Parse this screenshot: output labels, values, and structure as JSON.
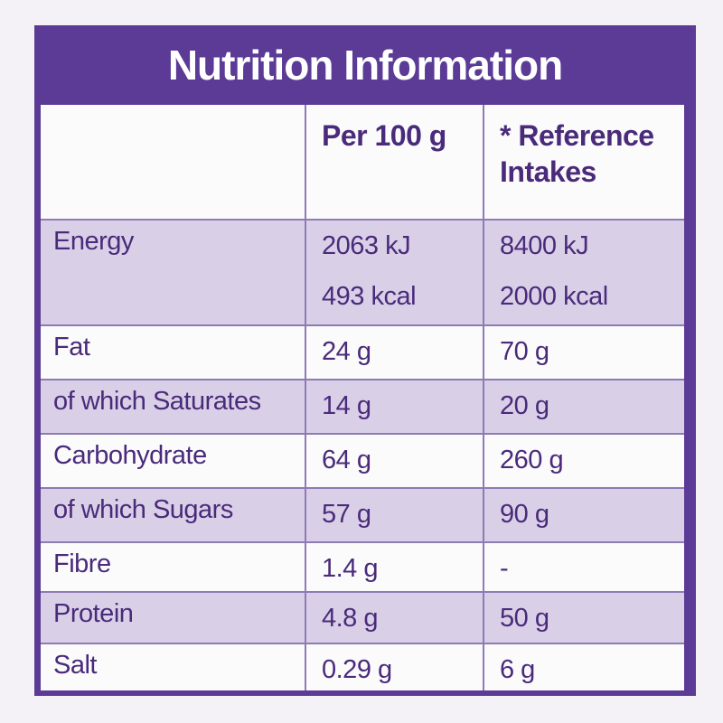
{
  "title": "Nutrition Information",
  "table": {
    "columns": [
      "Per 100 g",
      "* Reference Intakes"
    ],
    "rows": [
      {
        "name": "Energy",
        "per_100g": [
          "2063 kJ",
          "493 kcal"
        ],
        "reference": [
          "8400 kJ",
          "2000 kcal"
        ]
      },
      {
        "name": "Fat",
        "per_100g": [
          "24 g"
        ],
        "reference": [
          "70 g"
        ]
      },
      {
        "name": "of which Saturates",
        "per_100g": [
          "14 g"
        ],
        "reference": [
          "20 g"
        ]
      },
      {
        "name": "Carbohydrate",
        "per_100g": [
          "64 g"
        ],
        "reference": [
          "260 g"
        ]
      },
      {
        "name": "of which Sugars",
        "per_100g": [
          "57 g"
        ],
        "reference": [
          "90 g"
        ]
      },
      {
        "name": "Fibre",
        "per_100g": [
          "1.4 g"
        ],
        "reference": [
          "-"
        ]
      },
      {
        "name": "Protein",
        "per_100g": [
          "4.8 g"
        ],
        "reference": [
          "50 g"
        ]
      },
      {
        "name": "Salt",
        "per_100g": [
          "0.29 g"
        ],
        "reference": [
          "6 g"
        ]
      }
    ]
  }
}
